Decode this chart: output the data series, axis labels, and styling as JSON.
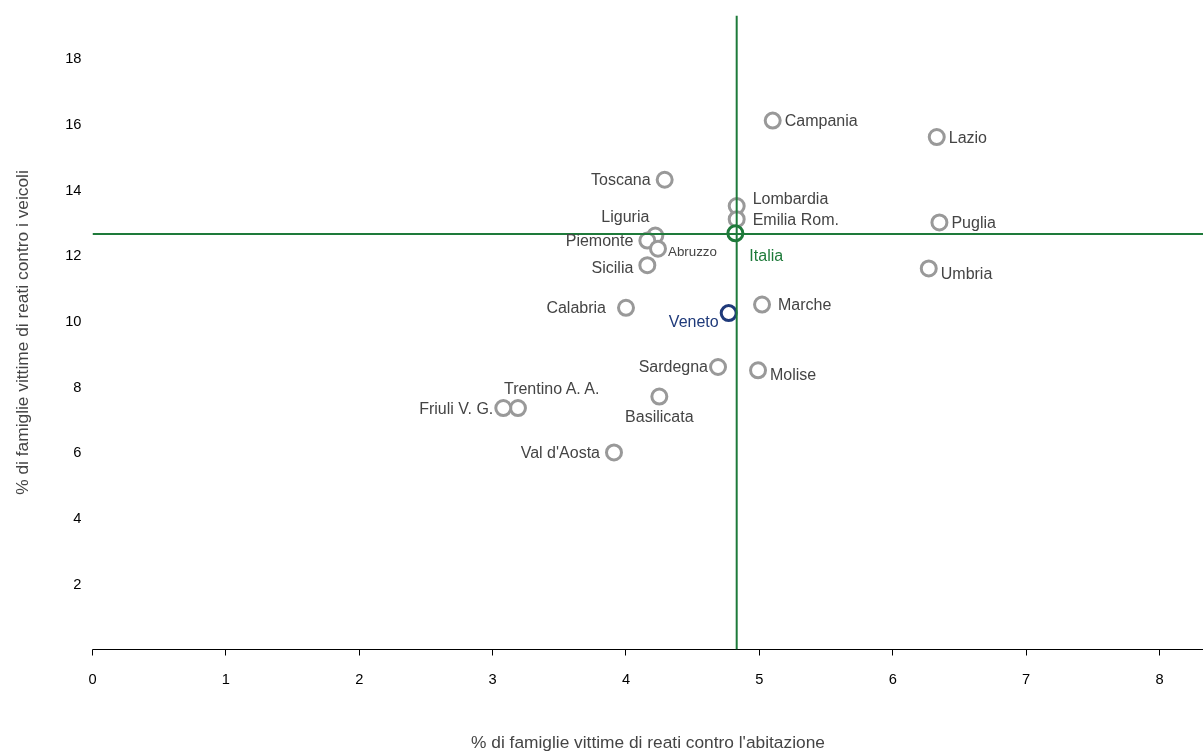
{
  "chart_data": {
    "type": "scatter",
    "xlabel": "% di famiglie vittime di reati contro l'abitazione",
    "ylabel": "% di famiglie vittime di reati contro i veicoli",
    "xlim": [
      0,
      8.33
    ],
    "ylim": [
      0,
      19.3
    ],
    "xticks": [
      0,
      1,
      2,
      3,
      4,
      5,
      6,
      7,
      8
    ],
    "yticks": [
      2,
      4,
      6,
      8,
      10,
      12,
      14,
      16,
      18
    ],
    "grid": false,
    "legend": false,
    "marker": "circle",
    "series": [
      {
        "color": "#999999",
        "x": [
          5.1,
          6.33,
          4.29,
          4.83,
          4.83,
          6.35,
          4.22,
          4.16,
          4.24,
          4.16,
          6.27,
          4.0,
          5.02,
          4.69,
          4.99,
          3.19,
          3.08,
          4.25,
          3.91
        ],
        "values": [
          16.1,
          15.6,
          14.3,
          13.5,
          13.1,
          13.0,
          12.6,
          12.45,
          12.2,
          11.7,
          11.6,
          10.4,
          10.5,
          8.6,
          8.5,
          7.35,
          7.35,
          7.7,
          6.0
        ]
      },
      {
        "name": "Italia",
        "color": "#1e7a3a",
        "x": [
          4.82
        ],
        "values": [
          12.67
        ]
      },
      {
        "name": "Veneto",
        "color": "#1f3a7a",
        "x": [
          4.77
        ],
        "values": [
          10.24
        ]
      }
    ],
    "ref_lines": [
      {
        "axis": "x",
        "value": 4.83,
        "color": "#1e7a3a"
      },
      {
        "axis": "y",
        "value": 12.65,
        "color": "#1e7a3a"
      }
    ],
    "annotations": [
      {
        "text": "Campania",
        "x": 5.1,
        "y": 16.1
      },
      {
        "text": "Lazio",
        "x": 6.33,
        "y": 15.6
      },
      {
        "text": "Toscana",
        "x": 4.29,
        "y": 14.3
      },
      {
        "text": "Lombardia",
        "x": 4.83,
        "y": 13.5
      },
      {
        "text": "Emilia Rom.",
        "x": 4.83,
        "y": 13.1
      },
      {
        "text": "Puglia",
        "x": 6.35,
        "y": 13.0
      },
      {
        "text": "Liguria",
        "x": 4.22,
        "y": 12.6
      },
      {
        "text": "Piemonte",
        "x": 4.16,
        "y": 12.45
      },
      {
        "text": "Abruzzo",
        "x": 4.24,
        "y": 12.2
      },
      {
        "text": "Sicilia",
        "x": 4.16,
        "y": 11.7
      },
      {
        "text": "Umbria",
        "x": 6.27,
        "y": 11.6
      },
      {
        "text": "Calabria",
        "x": 4.0,
        "y": 10.4
      },
      {
        "text": "Marche",
        "x": 5.02,
        "y": 10.5
      },
      {
        "text": "Sardegna",
        "x": 4.69,
        "y": 8.6
      },
      {
        "text": "Molise",
        "x": 4.99,
        "y": 8.5
      },
      {
        "text": "Trentino A. A.",
        "x": 3.19,
        "y": 7.35
      },
      {
        "text": "Friuli V. G.",
        "x": 3.08,
        "y": 7.35
      },
      {
        "text": "Basilicata",
        "x": 4.25,
        "y": 7.7
      },
      {
        "text": "Val d'Aosta",
        "x": 3.91,
        "y": 6.0
      }
    ]
  }
}
